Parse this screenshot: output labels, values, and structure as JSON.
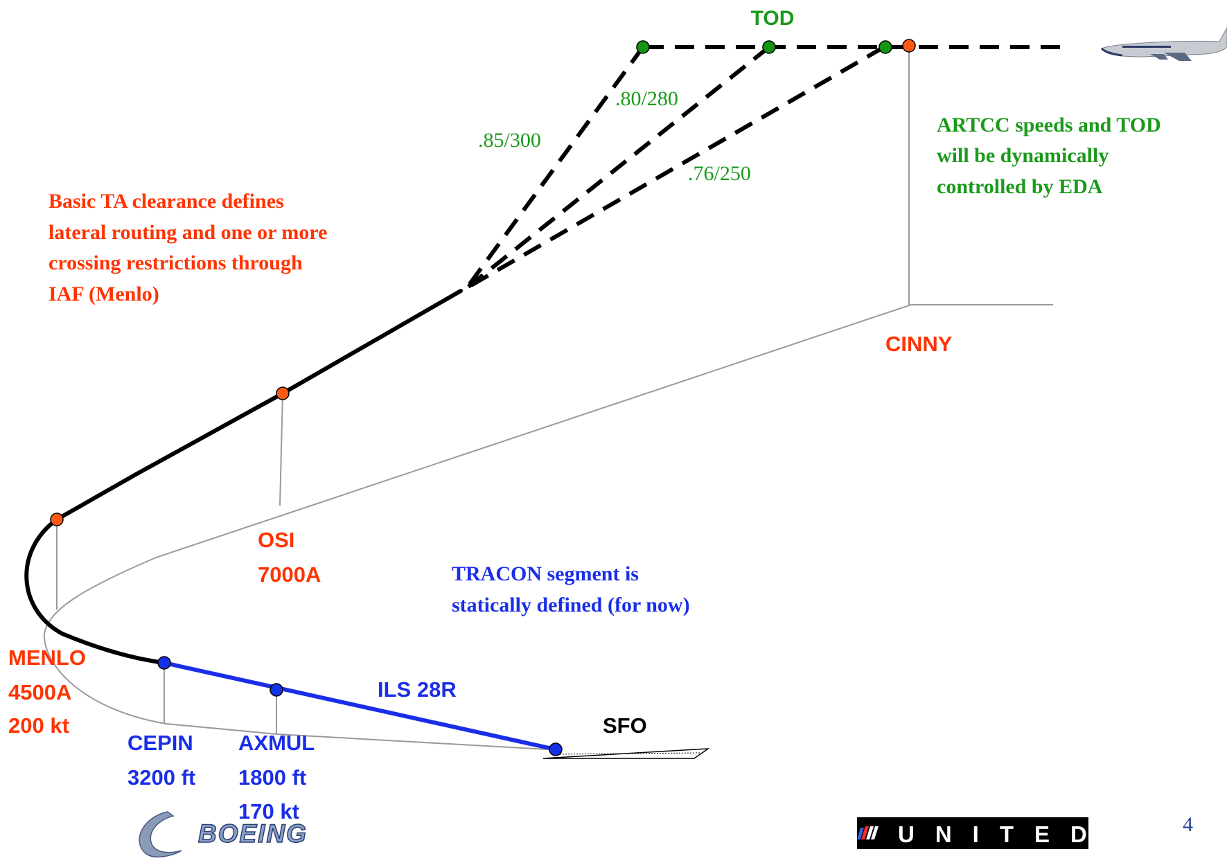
{
  "colors": {
    "red": "#ff3300",
    "green": "#1a9a1a",
    "blue": "#1a2ee8",
    "black": "#000000",
    "grey": "#9a9a9a",
    "orange_dot": "#ff5a14",
    "green_dot": "#149614",
    "blue_dot": "#1432e6"
  },
  "tod": {
    "label": "TOD"
  },
  "speeds": {
    "s1": ".85/300",
    "s2": ".80/280",
    "s3": ".76/250"
  },
  "artcc_note": {
    "lines": [
      "ARTCC speeds and TOD",
      "will be dynamically",
      "controlled by EDA"
    ]
  },
  "ta_note": {
    "lines": [
      "Basic TA clearance defines",
      "lateral routing and one or more",
      "crossing restrictions through",
      "IAF (Menlo)"
    ]
  },
  "tracon_note": {
    "lines": [
      "TRACON segment is",
      "statically defined (for now)"
    ]
  },
  "waypoints": {
    "cinny": {
      "name": "CINNY"
    },
    "osi": {
      "name": "OSI",
      "alt": "7000A"
    },
    "menlo": {
      "name": "MENLO",
      "alt": "4500A",
      "speed": "200 kt"
    },
    "cepin": {
      "name": "CEPIN",
      "alt": "3200 ft"
    },
    "axmul": {
      "name": "AXMUL",
      "alt": "1800 ft",
      "speed": "170 kt"
    },
    "sfo": {
      "name": "SFO"
    }
  },
  "approach": {
    "label": "ILS 28R"
  },
  "logos": {
    "boeing": "BOEING",
    "united": "UNITED"
  },
  "page_number": "4"
}
